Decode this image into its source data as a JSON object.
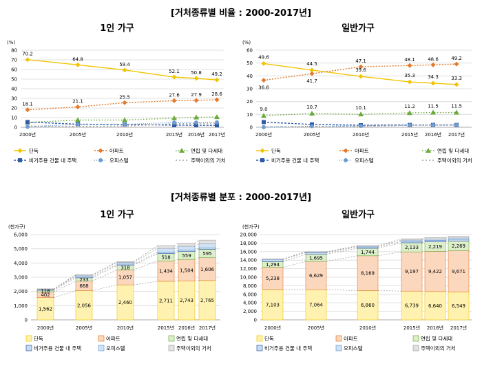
{
  "top_title": "[거처종류별 비율 : 2000-2017년]",
  "bottom_title": "[거처종류별 분포 : 2000-2017년]",
  "colors": {
    "single": "#f2c400",
    "apt": "#e3792b",
    "yeonrip": "#6aaa3a",
    "nonres": "#2f5aa8",
    "officetel": "#6b9bd2",
    "other": "#a0a0a0"
  },
  "chart_data": [
    {
      "type": "line",
      "title": "1인 가구",
      "unit_label": "(%)",
      "x": [
        "2000년",
        "2005년",
        "2010년",
        "2015년",
        "2016년",
        "2017년"
      ],
      "ylim": [
        0,
        80
      ],
      "yticks": [
        0,
        10,
        20,
        30,
        40,
        50,
        60,
        70,
        80
      ],
      "grid": true,
      "legend": "bottom",
      "series": [
        {
          "name": "단독",
          "values": [
            70.2,
            64.8,
            59.4,
            52.1,
            50.8,
            49.2
          ],
          "labels": [
            "70.2",
            "64.8",
            "59.4",
            "52.1",
            "50.8",
            "49.2"
          ]
        },
        {
          "name": "아파트",
          "values": [
            18.1,
            21.1,
            25.5,
            27.6,
            27.9,
            28.6
          ],
          "labels": [
            "18.1",
            "21.1",
            "25.5",
            "27.6",
            "27.9",
            "28.6"
          ]
        },
        {
          "name": "연립 및 다세대",
          "values": [
            5.0,
            7.5,
            7.5,
            9.5,
            10.3,
            10.6
          ]
        },
        {
          "name": "비거주용 건물 내 주택",
          "values": [
            5.4,
            3.2,
            2.9,
            2.2,
            2.1,
            2.0
          ]
        },
        {
          "name": "오피스텔",
          "values": [
            0.5,
            3.0,
            3.0,
            4.8,
            4.9,
            5.1
          ]
        },
        {
          "name": "주택이외의 거처",
          "values": [
            1.3,
            0.9,
            1.3,
            3.6,
            4.1,
            4.3
          ]
        }
      ]
    },
    {
      "type": "line",
      "title": "일반가구",
      "unit_label": "(%)",
      "x": [
        "2000년",
        "2005년",
        "2010년",
        "2015년",
        "2016년",
        "2017년"
      ],
      "ylim": [
        0,
        60
      ],
      "yticks": [
        0,
        10,
        20,
        30,
        40,
        50,
        60
      ],
      "grid": true,
      "legend": "bottom",
      "series": [
        {
          "name": "단독",
          "values": [
            49.6,
            44.5,
            39.6,
            35.3,
            34.3,
            33.3
          ],
          "labels": [
            "49.6",
            "44.5",
            "39.6",
            "35.3",
            "34.3",
            "33.3"
          ]
        },
        {
          "name": "아파트",
          "values": [
            36.6,
            41.7,
            47.1,
            48.1,
            48.6,
            49.2
          ],
          "labels": [
            "36.6",
            "41.7",
            "47.1",
            "48.1",
            "48.6",
            "49.2"
          ]
        },
        {
          "name": "연립 및 다세대",
          "values": [
            9.0,
            10.7,
            10.1,
            11.2,
            11.5,
            11.5
          ],
          "labels": [
            "9.0",
            "10.7",
            "10.1",
            "11.2",
            "11.5",
            "11.5"
          ]
        },
        {
          "name": "비거주용 건물 내 주택",
          "values": [
            4.0,
            2.2,
            1.6,
            1.8,
            1.8,
            1.8
          ]
        },
        {
          "name": "오피스텔",
          "values": [
            0.1,
            0.8,
            1.1,
            1.6,
            1.6,
            1.8
          ]
        },
        {
          "name": "주택이외의 거처",
          "values": [
            0.3,
            0.4,
            0.7,
            1.6,
            1.8,
            2.0
          ]
        }
      ]
    },
    {
      "type": "bar",
      "stacked": true,
      "title": "1인 가구",
      "unit_label": "(천가구)",
      "categories": [
        "2000년",
        "2005년",
        "2010년",
        "2015년",
        "2016년",
        "2017년"
      ],
      "ylim": [
        0,
        6000
      ],
      "yticks": [
        0,
        1000,
        2000,
        3000,
        4000,
        5000,
        6000
      ],
      "ytick_labels": [
        "0",
        "1,000",
        "2,000",
        "3,000",
        "4,000",
        "5,000",
        "6,000"
      ],
      "legend": "bottom",
      "series": [
        {
          "name": "단독",
          "values": [
            1562,
            2056,
            2460,
            2711,
            2743,
            2765
          ],
          "labels": [
            "1,562",
            "2,056",
            "2,460",
            "2,711",
            "2,743",
            "2,765"
          ]
        },
        {
          "name": "아파트",
          "values": [
            402,
            668,
            1057,
            1434,
            1504,
            1606
          ],
          "labels": [
            "402",
            "668",
            "1,057",
            "1,434",
            "1,504",
            "1,606"
          ]
        },
        {
          "name": "연립 및 다세대",
          "values": [
            118,
            233,
            318,
            518,
            559,
            595
          ],
          "labels": [
            "118",
            "233",
            "318",
            "518",
            "559",
            "595"
          ]
        },
        {
          "name": "비거주용 건물 내 주택",
          "values": [
            60,
            80,
            90,
            100,
            100,
            100
          ]
        },
        {
          "name": "오피스텔",
          "values": [
            10,
            100,
            120,
            260,
            270,
            290
          ]
        },
        {
          "name": "주택이외의 거처",
          "values": [
            30,
            30,
            50,
            200,
            220,
            250
          ]
        }
      ]
    },
    {
      "type": "bar",
      "stacked": true,
      "title": "일반가구",
      "unit_label": "(천가구)",
      "categories": [
        "2000년",
        "2005년",
        "2010년",
        "2015년",
        "2016년",
        "2017년"
      ],
      "ylim": [
        0,
        20000
      ],
      "yticks": [
        0,
        2000,
        4000,
        6000,
        8000,
        10000,
        12000,
        14000,
        16000,
        18000,
        20000
      ],
      "ytick_labels": [
        "0",
        "2,000",
        "4,000",
        "6,000",
        "8,000",
        "10,000",
        "12,000",
        "14,000",
        "16,000",
        "18,000",
        "20,000"
      ],
      "legend": "bottom",
      "series": [
        {
          "name": "단독",
          "values": [
            7103,
            7064,
            6860,
            6739,
            6640,
            6549
          ],
          "labels": [
            "7,103",
            "7,064",
            "6,860",
            "6,739",
            "6,640",
            "6,549"
          ]
        },
        {
          "name": "아파트",
          "values": [
            5238,
            6629,
            8169,
            9197,
            9422,
            9671
          ],
          "labels": [
            "5,238",
            "6,629",
            "8,169",
            "9,197",
            "9,422",
            "9,671"
          ]
        },
        {
          "name": "연립 및 다세대",
          "values": [
            1294,
            1695,
            1744,
            2133,
            2219,
            2269
          ],
          "labels": [
            "1,294",
            "1,695",
            "1,744",
            "2,133",
            "2,219",
            "2,269"
          ]
        },
        {
          "name": "비거주용 건물 내 주택",
          "values": [
            570,
            380,
            290,
            340,
            350,
            360
          ]
        },
        {
          "name": "오피스텔",
          "values": [
            20,
            130,
            200,
            300,
            320,
            350
          ]
        },
        {
          "name": "주택이외의 거처",
          "values": [
            60,
            70,
            130,
            300,
            340,
            370
          ]
        }
      ]
    }
  ]
}
